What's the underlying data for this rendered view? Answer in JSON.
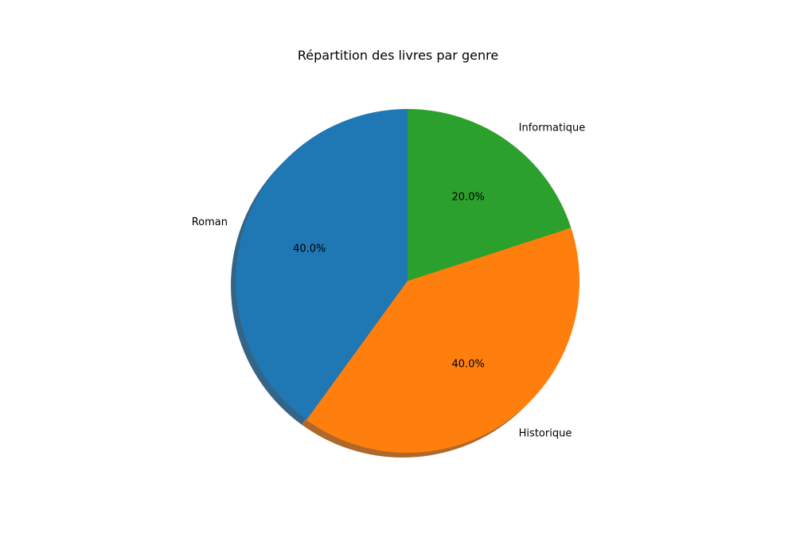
{
  "chart_data": {
    "type": "pie",
    "title": "Répartition des livres par genre",
    "categories": [
      "Roman",
      "Historique",
      "Informatique"
    ],
    "values": [
      40,
      40,
      20
    ],
    "percent_labels": [
      "40.0%",
      "40.0%",
      "20.0%"
    ],
    "colors": [
      "#1f77b4",
      "#ff7f0e",
      "#2ca02c"
    ],
    "start_angle_deg": 90,
    "direction": "counterclockwise",
    "shadow": true,
    "legend": "none"
  }
}
